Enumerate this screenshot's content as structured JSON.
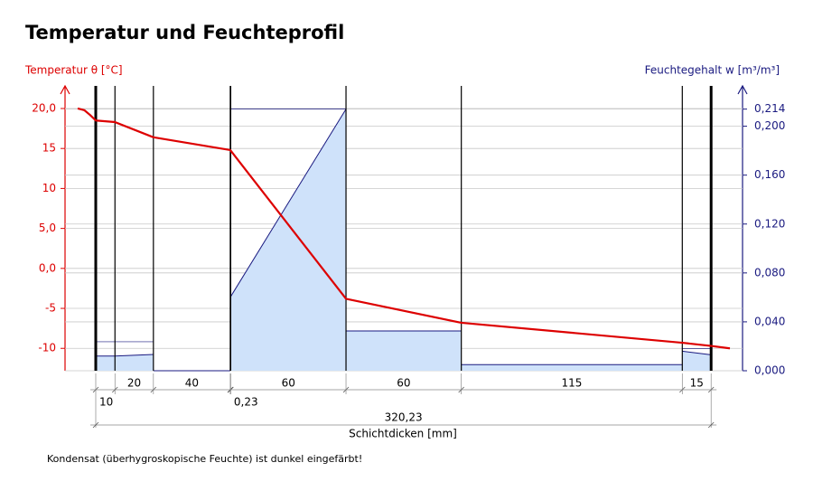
{
  "chart_data": {
    "type": "line",
    "title": "Temperatur und Feuchteprofil",
    "y_label": "Temperatur θ [°C]",
    "y2_label": "Feuchtegehalt  w [m³/m³]",
    "x_label": "Schichtdicken [mm]",
    "footnote": "Kondensat (überhygroskopische Feuchte) ist dunkel eingefärbt!",
    "xlim": [
      -9.4,
      330
    ],
    "ylim": [
      -12.8,
      22.6
    ],
    "yticks": [
      {
        "value": 20,
        "label": "20,0"
      },
      15,
      10,
      {
        "value": 5,
        "label": "5,0"
      },
      {
        "value": 0,
        "label": "0,0"
      },
      -5,
      -10
    ],
    "y2lim": [
      0,
      0.2315
    ],
    "y2ticks": [
      {
        "value": 0,
        "label": "0,000"
      },
      {
        "value": 0.04,
        "label": "0,040"
      },
      {
        "value": 0.08,
        "label": "0,080"
      },
      {
        "value": 0.12,
        "label": "0,120"
      },
      {
        "value": 0.16,
        "label": "0,160"
      },
      {
        "value": 0.2,
        "label": "0,200"
      },
      {
        "value": 0.214,
        "label": "0,214"
      }
    ],
    "grid": true,
    "series": [
      {
        "color": "#dd0000",
        "x": [
          -9.4,
          -6,
          -3,
          0,
          10,
          30,
          70,
          130.23,
          190.23,
          305.23,
          320.23,
          330
        ],
        "values": [
          20,
          19.8,
          19.2,
          18.5,
          18.3,
          16.4,
          14.8,
          -3.8,
          -6.8,
          -9.3,
          -9.7,
          -10
        ]
      }
    ],
    "moisture": {
      "axis": "y2",
      "color": "#1a1a80",
      "fill": "#cfe2fa",
      "segments": [
        {
          "x": [
            0,
            10
          ],
          "values": [
            0.012,
            0.012
          ]
        },
        {
          "x": [
            10,
            30
          ],
          "values": [
            0.012,
            0.0133
          ]
        },
        {
          "x": [
            30,
            70
          ],
          "values": [
            0,
            0
          ]
        },
        {
          "x": [
            70.23,
            130.23
          ],
          "values": [
            0.0607,
            0.214
          ]
        },
        {
          "x": [
            130.23,
            190.23
          ],
          "values": [
            0.0325,
            0.0325
          ]
        },
        {
          "x": [
            190.23,
            305.23
          ],
          "values": [
            0.005,
            0.005
          ]
        },
        {
          "x": [
            305.23,
            320.23
          ],
          "values": [
            0.016,
            0.013
          ]
        }
      ]
    },
    "limit_lines": {
      "axis": "y2",
      "color": "#1a1a80",
      "segments": [
        {
          "x": [
            0,
            30
          ],
          "values": [
            0.0237,
            0.0237
          ]
        },
        {
          "x": [
            70.23,
            130.23
          ],
          "values": [
            0.214,
            0.214
          ]
        },
        {
          "x": [
            305.23,
            320.23
          ],
          "values": [
            0.018,
            0.018
          ]
        }
      ]
    },
    "layers": [
      10,
      20,
      40,
      {
        "value": 0.23,
        "label": "0,23"
      },
      60,
      60,
      115,
      15
    ],
    "total": {
      "value": 320.23,
      "label": "320,23"
    }
  }
}
